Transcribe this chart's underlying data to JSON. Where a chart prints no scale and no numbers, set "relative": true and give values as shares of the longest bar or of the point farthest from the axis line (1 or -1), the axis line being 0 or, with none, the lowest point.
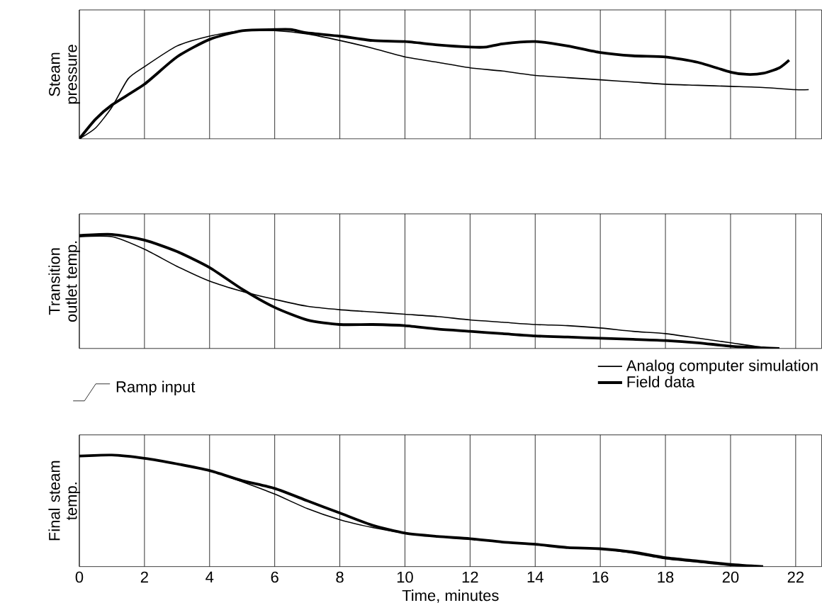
{
  "chart_data": [
    {
      "type": "line",
      "relative": true,
      "ylabel": "Steam pressure",
      "xlim": [
        0,
        22.8
      ],
      "xticks": [
        0,
        2,
        4,
        6,
        8,
        10,
        12,
        14,
        16,
        18,
        20,
        22
      ],
      "tick_labels": false,
      "grid": "x",
      "legend": false,
      "series": [
        {
          "color": "#000000",
          "x": [
            0,
            0.5,
            1,
            1.5,
            2,
            3,
            4,
            5,
            6,
            7,
            8,
            9,
            10,
            11,
            12,
            13,
            14,
            15,
            16,
            17,
            18,
            19,
            20,
            21,
            22,
            22.4
          ],
          "values": [
            0,
            0.1,
            0.29,
            0.55,
            0.66,
            0.85,
            0.94,
            0.99,
            0.99,
            0.96,
            0.9,
            0.83,
            0.75,
            0.7,
            0.65,
            0.62,
            0.58,
            0.56,
            0.54,
            0.52,
            0.5,
            0.49,
            0.48,
            0.47,
            0.45,
            0.45
          ]
        },
        {
          "color": "#000000",
          "x": [
            0,
            0.5,
            1,
            2,
            3,
            4,
            5,
            6,
            6.5,
            7,
            8,
            9,
            10,
            11,
            12,
            12.5,
            13,
            14,
            15,
            16,
            17,
            18,
            19,
            20,
            20.5,
            21,
            21.5,
            21.8
          ],
          "values": [
            0,
            0.18,
            0.31,
            0.5,
            0.75,
            0.91,
            0.99,
            1.0,
            1.0,
            0.97,
            0.94,
            0.9,
            0.89,
            0.86,
            0.84,
            0.84,
            0.87,
            0.89,
            0.85,
            0.79,
            0.76,
            0.75,
            0.7,
            0.61,
            0.59,
            0.6,
            0.65,
            0.72
          ]
        }
      ]
    },
    {
      "type": "line",
      "relative": true,
      "ylabel": "Transition outlet temp.",
      "xlim": [
        0,
        22.8
      ],
      "xticks": [
        0,
        2,
        4,
        6,
        8,
        10,
        12,
        14,
        16,
        18,
        20,
        22
      ],
      "tick_labels": false,
      "grid": "x",
      "legend": "bottom right",
      "annotations": [
        "Ramp input"
      ],
      "series": [
        {
          "name": "Analog computer simulation",
          "color": "#000000",
          "x": [
            0,
            1,
            2,
            3,
            4,
            5,
            6,
            7,
            8,
            9,
            10,
            11,
            12,
            13,
            14,
            15,
            16,
            17,
            18,
            19,
            20,
            21,
            21.5
          ],
          "values": [
            0.98,
            0.98,
            0.87,
            0.72,
            0.59,
            0.5,
            0.43,
            0.37,
            0.34,
            0.32,
            0.3,
            0.28,
            0.25,
            0.23,
            0.21,
            0.2,
            0.18,
            0.15,
            0.13,
            0.09,
            0.05,
            0.01,
            0
          ]
        },
        {
          "name": "Field data",
          "color": "#000000",
          "x": [
            0,
            1,
            2,
            3,
            4,
            5,
            6,
            7,
            8,
            9,
            10,
            11,
            12,
            13,
            14,
            15,
            16,
            17,
            18,
            19,
            20,
            21,
            21.5
          ],
          "values": [
            0.99,
            1.0,
            0.95,
            0.85,
            0.71,
            0.52,
            0.36,
            0.25,
            0.21,
            0.21,
            0.2,
            0.17,
            0.15,
            0.13,
            0.11,
            0.1,
            0.09,
            0.08,
            0.07,
            0.05,
            0.02,
            0.005,
            0
          ]
        }
      ]
    },
    {
      "type": "line",
      "relative": true,
      "ylabel": "Final steam temp.",
      "xlabel": "Time, minutes",
      "xlim": [
        0,
        22.8
      ],
      "xticks": [
        0,
        2,
        4,
        6,
        8,
        10,
        12,
        14,
        16,
        18,
        20,
        22
      ],
      "tick_labels": "x",
      "grid": "x",
      "legend": false,
      "series": [
        {
          "color": "#000000",
          "x": [
            0,
            1,
            2,
            3,
            4,
            5,
            6,
            7,
            8,
            9,
            10,
            11,
            12,
            13,
            14,
            15,
            16,
            17,
            18,
            19,
            20,
            21
          ],
          "values": [
            0.99,
            1.0,
            0.97,
            0.92,
            0.86,
            0.76,
            0.65,
            0.52,
            0.42,
            0.35,
            0.3,
            0.27,
            0.25,
            0.22,
            0.2,
            0.17,
            0.16,
            0.12,
            0.07,
            0.04,
            0.01,
            0
          ]
        },
        {
          "color": "#000000",
          "x": [
            0,
            1,
            2,
            3,
            4,
            5,
            6,
            7,
            8,
            9,
            10,
            11,
            12,
            13,
            14,
            15,
            16,
            17,
            18,
            19,
            20,
            21
          ],
          "values": [
            0.99,
            1.0,
            0.97,
            0.92,
            0.86,
            0.77,
            0.7,
            0.59,
            0.48,
            0.37,
            0.3,
            0.27,
            0.25,
            0.22,
            0.2,
            0.17,
            0.16,
            0.13,
            0.08,
            0.05,
            0.02,
            0
          ]
        }
      ]
    }
  ]
}
